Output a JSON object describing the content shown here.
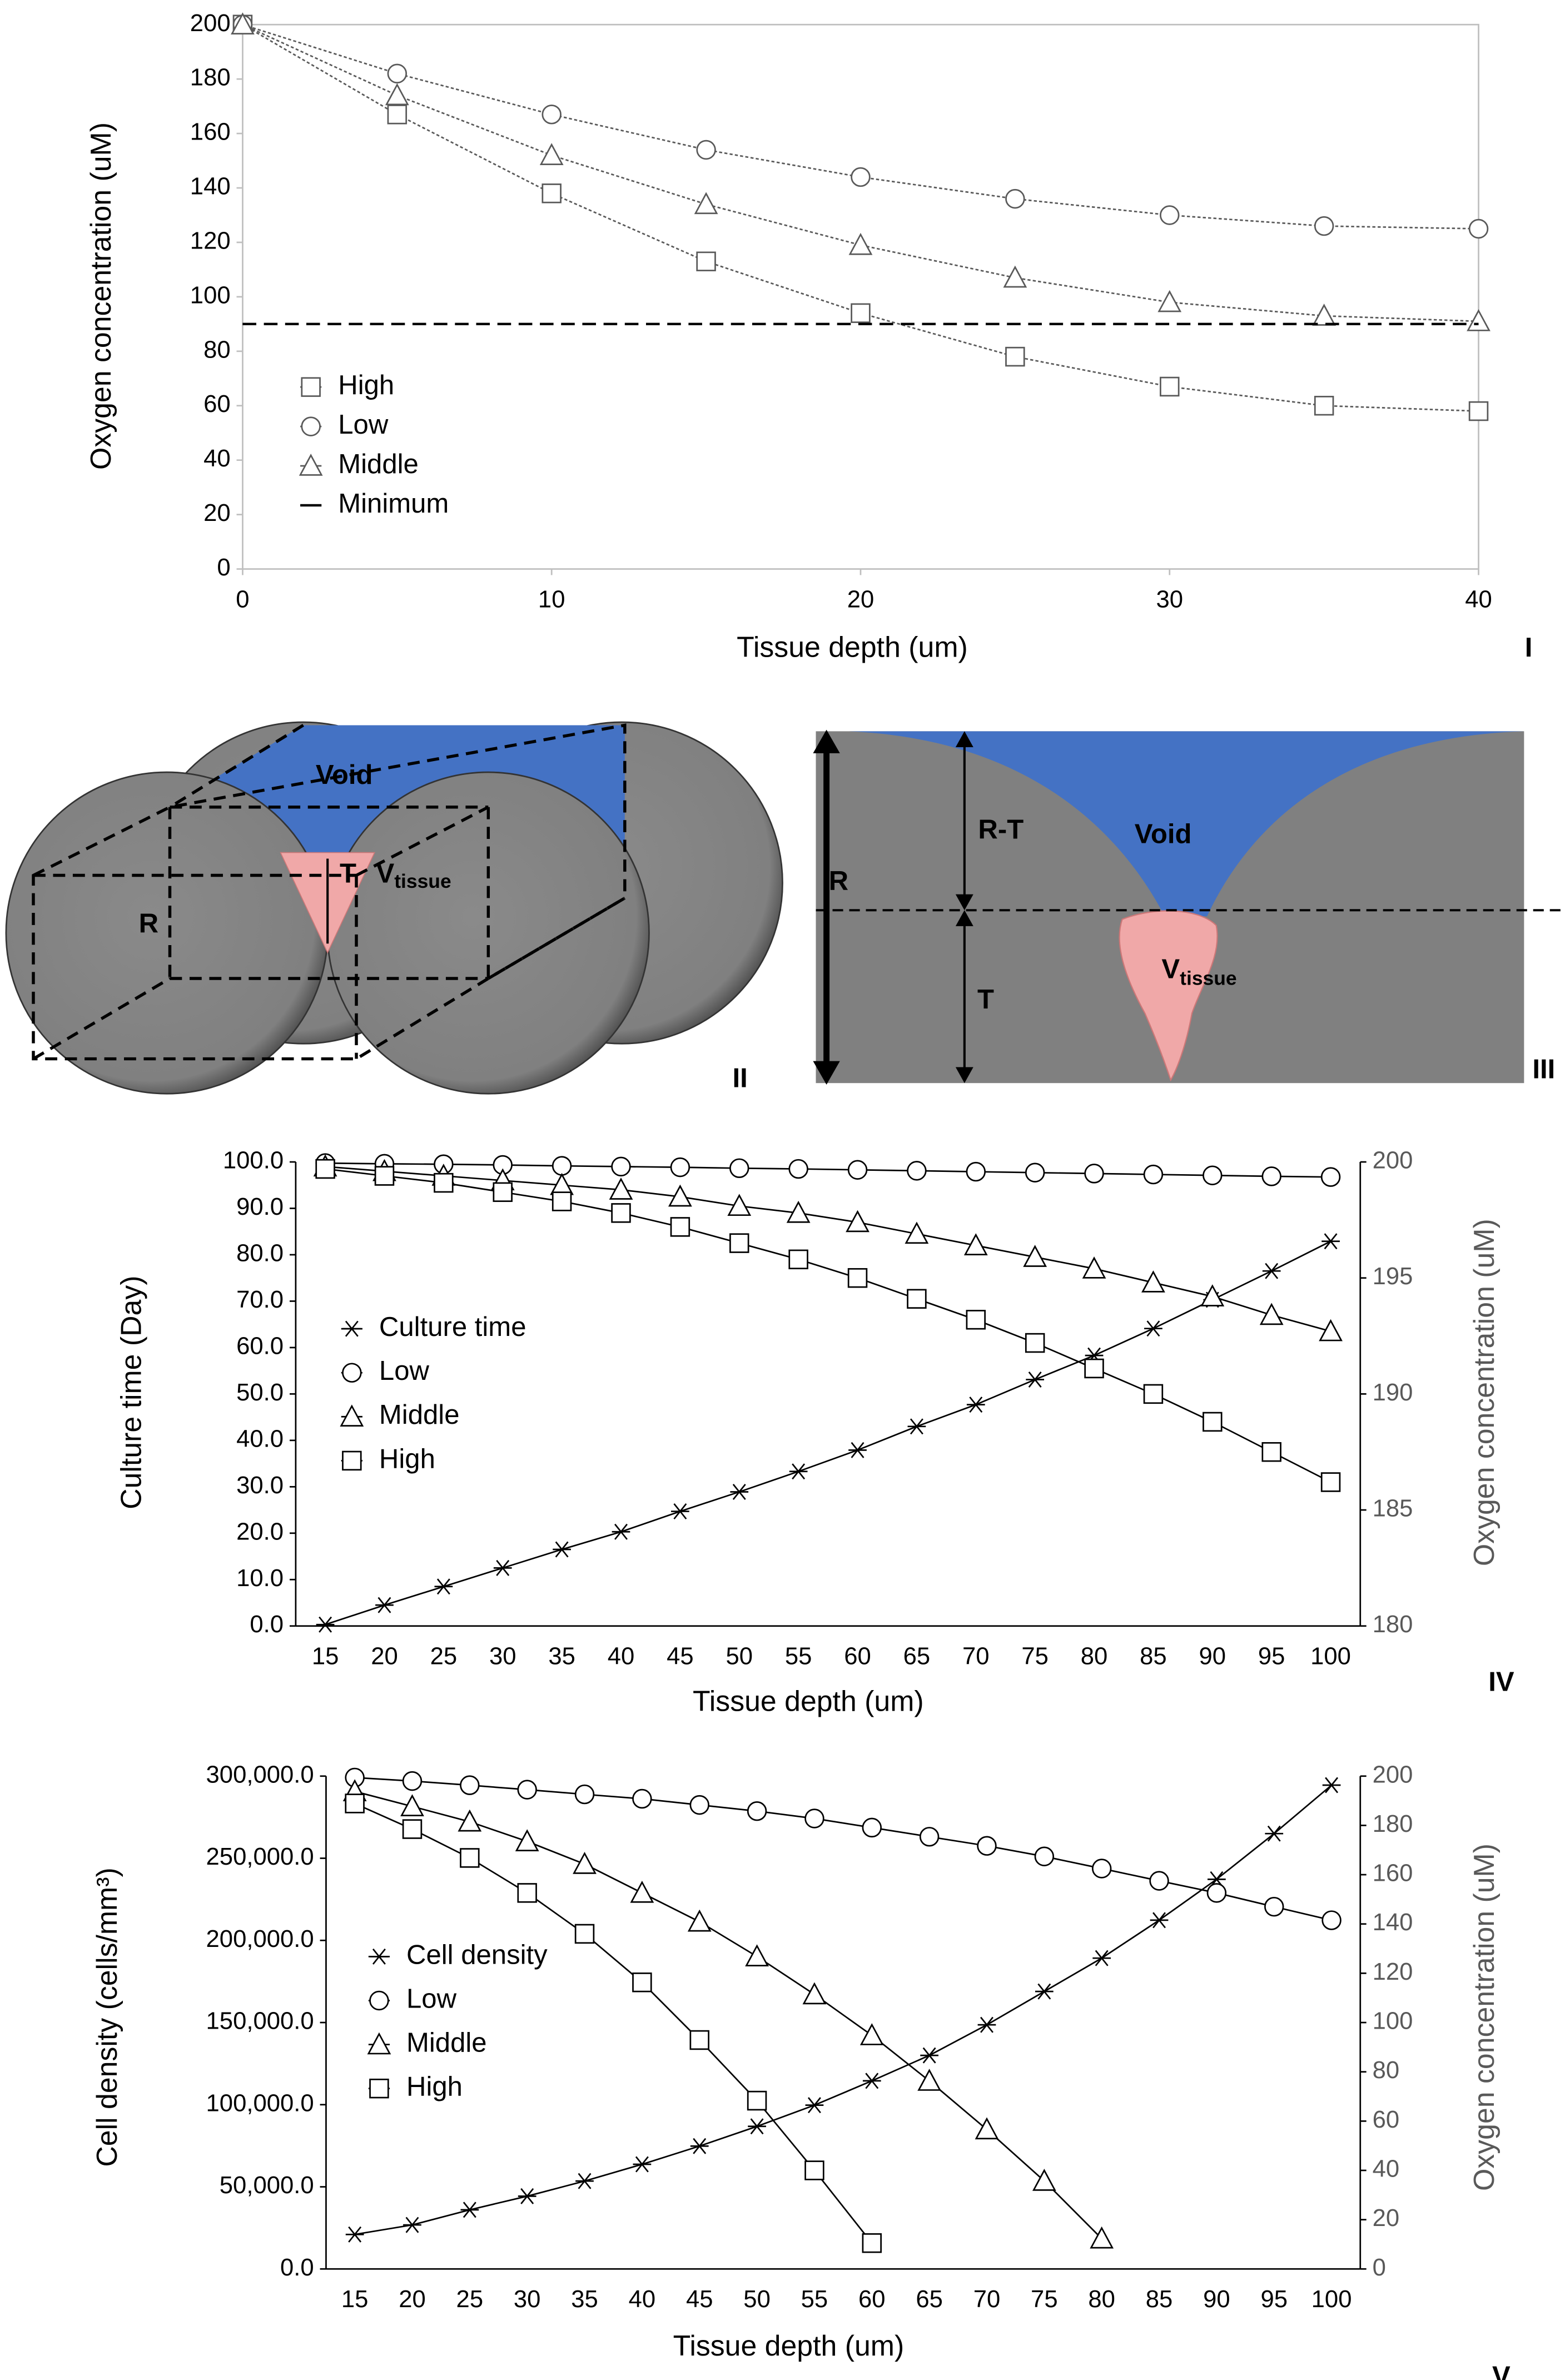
{
  "chart_data": [
    {
      "type": "line",
      "panel_label": "I",
      "x_label": "Tissue depth (um)",
      "y_label": "Oxygen concentration (uM)",
      "x": [
        0,
        5,
        10,
        15,
        20,
        25,
        30,
        35,
        40
      ],
      "xlim": [
        0,
        40
      ],
      "xticks": [
        0,
        10,
        20,
        30,
        40
      ],
      "ylim": [
        0,
        200
      ],
      "yticks": [
        0,
        20,
        40,
        60,
        80,
        100,
        120,
        140,
        160,
        180,
        200
      ],
      "frame": true,
      "line_style": "dotted",
      "series": [
        {
          "name": "High",
          "color": "#595959",
          "marker": "square",
          "values": [
            200,
            167,
            138,
            113,
            94,
            78,
            67,
            60,
            58
          ]
        },
        {
          "name": "Low",
          "color": "#595959",
          "marker": "circle",
          "values": [
            200,
            182,
            167,
            154,
            144,
            136,
            130,
            126,
            125
          ]
        },
        {
          "name": "Middle",
          "color": "#595959",
          "marker": "triangle",
          "values": [
            200,
            174,
            152,
            134,
            119,
            107,
            98,
            93,
            91
          ]
        },
        {
          "name": "Minimum",
          "color": "#000000",
          "marker": "none",
          "dashed": true,
          "values": [
            90,
            90,
            90,
            90,
            90,
            90,
            90,
            90,
            90
          ]
        }
      ]
    },
    {
      "type": "line",
      "panel_label": "IV",
      "x_label": "Tissue depth (um)",
      "y_label": "Culture time (Day)",
      "y2_label": "Oxygen concentration (uM)",
      "categories": [
        15,
        20,
        25,
        30,
        35,
        40,
        45,
        50,
        55,
        60,
        65,
        70,
        75,
        80,
        85,
        90,
        95,
        100
      ],
      "ylim": [
        0,
        100
      ],
      "yticks": [
        {
          "value": 0,
          "label": "0.0"
        },
        {
          "value": 10,
          "label": "10.0"
        },
        {
          "value": 20,
          "label": "20.0"
        },
        {
          "value": 30,
          "label": "30.0"
        },
        {
          "value": 40,
          "label": "40.0"
        },
        {
          "value": 50,
          "label": "50.0"
        },
        {
          "value": 60,
          "label": "60.0"
        },
        {
          "value": 70,
          "label": "70.0"
        },
        {
          "value": 80,
          "label": "80.0"
        },
        {
          "value": 90,
          "label": "90.0"
        },
        {
          "value": 100,
          "label": "100.0"
        }
      ],
      "y2lim": [
        180,
        200
      ],
      "y2ticks": [
        180,
        185,
        190,
        195,
        200
      ],
      "frame": false,
      "line_style": "solid",
      "series": [
        {
          "name": "Culture time",
          "color": "#000000",
          "marker": "asterisk",
          "values": [
            0.3,
            4.5,
            8.5,
            12.5,
            16.5,
            20.3,
            24.7,
            28.9,
            33.3,
            37.9,
            43,
            47.7,
            53.1,
            58.3,
            64.1,
            70.3,
            76.5,
            82.9
          ]
        },
        {
          "name": "Low",
          "color": "#000000",
          "marker": "circle",
          "axis": "y2",
          "values": [
            199.95,
            199.92,
            199.9,
            199.87,
            199.83,
            199.8,
            199.77,
            199.73,
            199.7,
            199.66,
            199.62,
            199.58,
            199.54,
            199.5,
            199.46,
            199.42,
            199.38,
            199.35
          ]
        },
        {
          "name": "Middle",
          "color": "#000000",
          "marker": "triangle",
          "axis": "y2",
          "values": [
            199.8,
            199.6,
            199.4,
            199.2,
            199.0,
            198.8,
            198.5,
            198.1,
            197.8,
            197.4,
            196.9,
            196.4,
            195.9,
            195.4,
            194.8,
            194.2,
            193.4,
            192.7
          ]
        },
        {
          "name": "High",
          "color": "#000000",
          "marker": "square",
          "axis": "y2",
          "values": [
            199.7,
            199.4,
            199.1,
            198.7,
            198.3,
            197.8,
            197.2,
            196.5,
            195.8,
            195.0,
            194.1,
            193.2,
            192.2,
            191.1,
            190.0,
            188.8,
            187.5,
            186.2
          ]
        }
      ]
    },
    {
      "type": "line",
      "panel_label": "V",
      "x_label": "Tissue depth (um)",
      "y_label": "Cell density (cells/mm³)",
      "y2_label": "Oxygen concentration (uM)",
      "categories": [
        15,
        20,
        25,
        30,
        35,
        40,
        45,
        50,
        55,
        60,
        65,
        70,
        75,
        80,
        85,
        90,
        95,
        100
      ],
      "ylim": [
        0,
        300000
      ],
      "yticks": [
        {
          "value": 0,
          "label": "0.0"
        },
        {
          "value": 50000,
          "label": "50,000.0"
        },
        {
          "value": 100000,
          "label": "100,000.0"
        },
        {
          "value": 150000,
          "label": "150,000.0"
        },
        {
          "value": 200000,
          "label": "200,000.0"
        },
        {
          "value": 250000,
          "label": "250,000.0"
        },
        {
          "value": 300000,
          "label": "300,000.0"
        }
      ],
      "y2lim": [
        0,
        200
      ],
      "y2ticks": [
        0,
        20,
        40,
        60,
        80,
        100,
        120,
        140,
        160,
        180,
        200
      ],
      "frame": false,
      "line_style": "solid",
      "series": [
        {
          "name": "Cell density",
          "color": "#000000",
          "marker": "asterisk",
          "values": [
            21000,
            26800,
            36000,
            44300,
            53500,
            63700,
            74800,
            86800,
            99700,
            114500,
            130000,
            148600,
            168900,
            189200,
            212300,
            237200,
            265000,
            294500
          ]
        },
        {
          "name": "Low",
          "color": "#000000",
          "marker": "circle",
          "axis": "y2",
          "values": [
            199.4,
            198,
            196.3,
            194.5,
            192.6,
            190.8,
            188.3,
            185.8,
            182.8,
            179.1,
            175.4,
            171.7,
            167.4,
            162.5,
            157.5,
            152.6,
            147,
            141.5
          ]
        },
        {
          "name": "Middle",
          "color": "#000000",
          "marker": "triangle",
          "axis": "y2",
          "values": [
            193.8,
            187.7,
            181.5,
            173.5,
            164.3,
            152.6,
            140.9,
            126.8,
            111.4,
            94.8,
            76.3,
            56.6,
            35.7,
            12.3,
            null,
            null,
            null,
            null
          ]
        },
        {
          "name": "High",
          "color": "#000000",
          "marker": "square",
          "axis": "y2",
          "values": [
            188.9,
            178.5,
            166.8,
            152.6,
            136,
            116.3,
            92.9,
            68.3,
            40,
            10.5,
            null,
            null,
            null,
            null,
            null,
            null,
            null,
            null
          ]
        }
      ]
    }
  ],
  "diagrams": [
    {
      "panel_label": "II",
      "void": "Void",
      "t": "T",
      "r": "R",
      "v": "V",
      "v_sub": "tissue"
    },
    {
      "panel_label": "III",
      "void": "Void",
      "r_t": "R-T",
      "r": "R",
      "t": "T",
      "v": "V",
      "v_sub": "tissue"
    }
  ]
}
